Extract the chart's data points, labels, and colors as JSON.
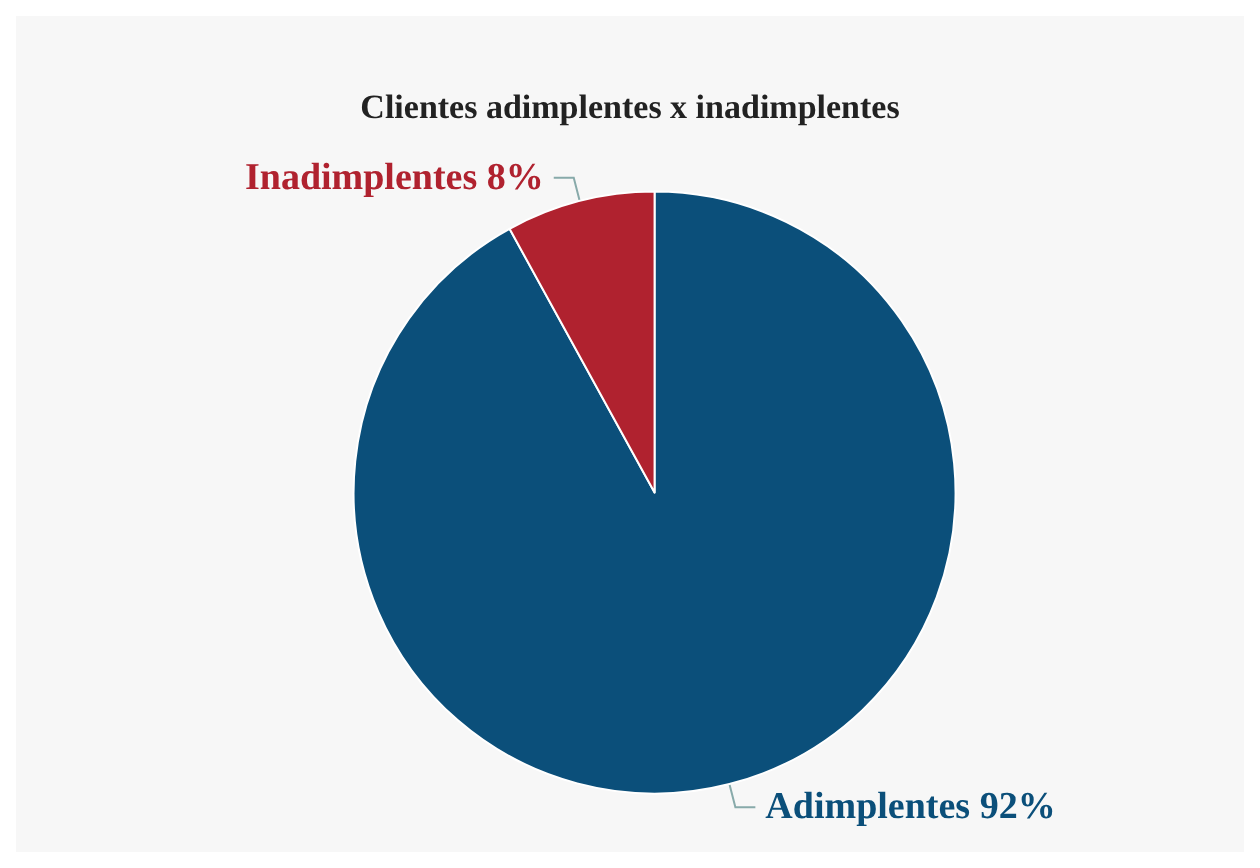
{
  "chart_data": {
    "type": "pie",
    "title": "Clientes adimplentes x inadimplentes",
    "categories": [
      "Adimplentes",
      "Inadimplentes"
    ],
    "values": [
      92,
      8
    ],
    "value_labels": [
      "92%",
      "8%"
    ],
    "colors": [
      "#0b4f7a",
      "#b0222f"
    ],
    "legend": false
  }
}
